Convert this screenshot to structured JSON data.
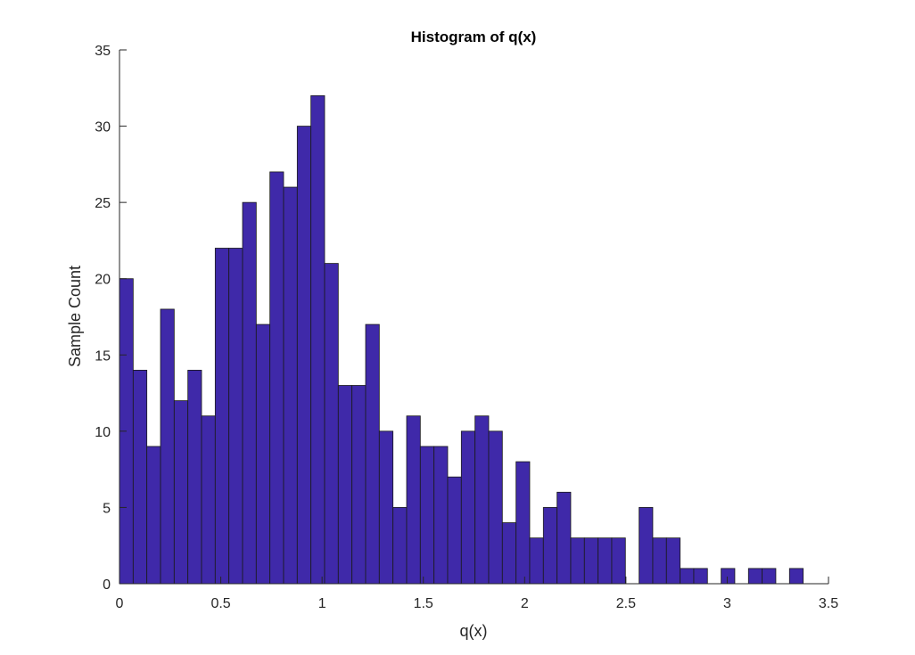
{
  "colors": {
    "bar_fill": "#3f29a9",
    "bar_edge": "#1a1a1a",
    "axis": "#262626",
    "background": "#ffffff"
  },
  "chart_data": {
    "type": "bar",
    "title": "Histogram of q(x)",
    "xlabel": "q(x)",
    "ylabel": "Sample Count",
    "xlim": [
      0,
      3.5
    ],
    "ylim": [
      0,
      35
    ],
    "xticks": [
      0,
      0.5,
      1,
      1.5,
      2,
      2.5,
      3,
      3.5
    ],
    "xtick_labels": [
      "0",
      "0.5",
      "1",
      "1.5",
      "2",
      "2.5",
      "3",
      "3.5"
    ],
    "yticks": [
      0,
      5,
      10,
      15,
      20,
      25,
      30,
      35
    ],
    "ytick_labels": [
      "0",
      "5",
      "10",
      "15",
      "20",
      "25",
      "30",
      "35"
    ],
    "bin_width": 0.0675,
    "bin_start": 0,
    "values": [
      20,
      14,
      9,
      18,
      12,
      14,
      11,
      22,
      22,
      25,
      17,
      27,
      26,
      30,
      32,
      21,
      13,
      13,
      17,
      10,
      5,
      11,
      9,
      9,
      7,
      10,
      11,
      10,
      4,
      8,
      3,
      5,
      6,
      3,
      3,
      3,
      3,
      0,
      5,
      3,
      3,
      1,
      1,
      0,
      1,
      0,
      1,
      1,
      0,
      1
    ],
    "grid": false,
    "legend": "none"
  }
}
